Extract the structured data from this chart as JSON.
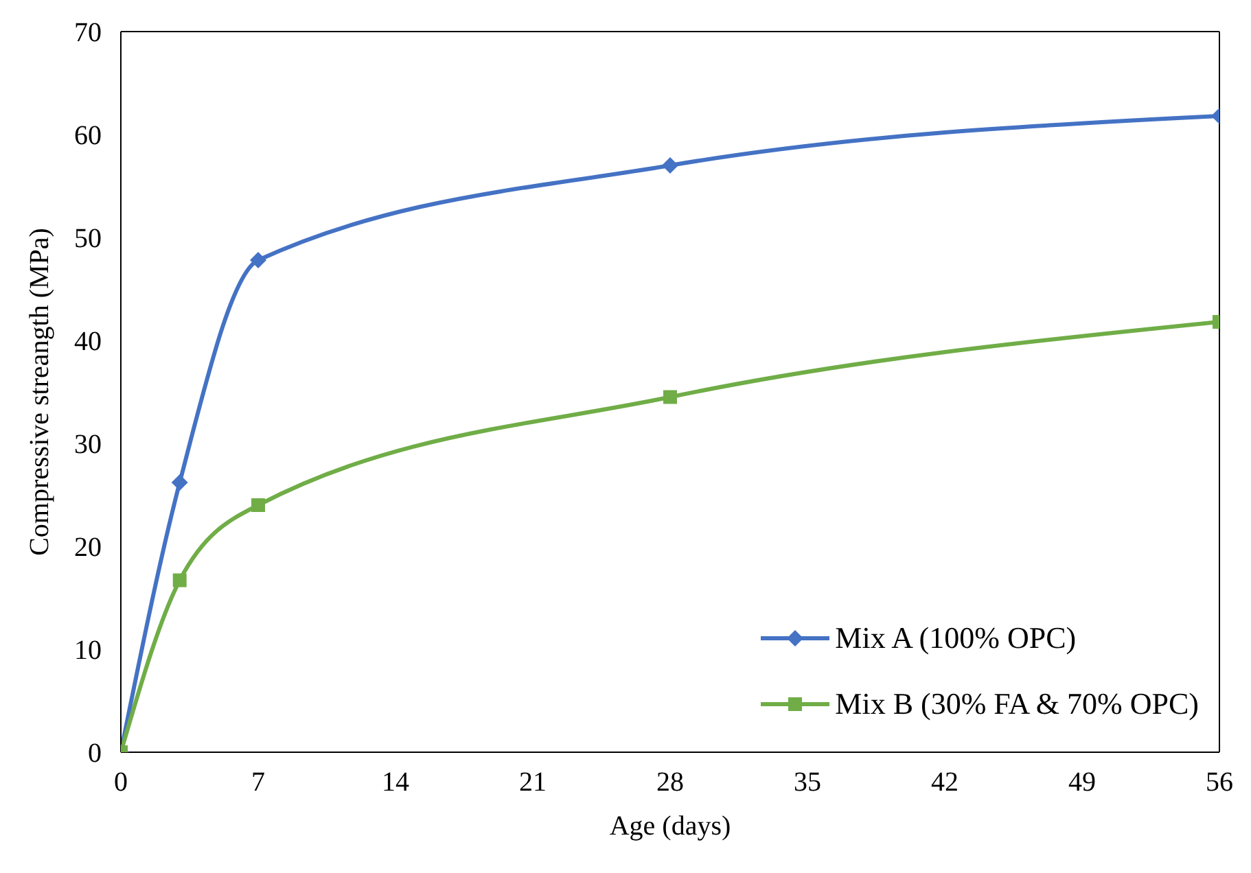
{
  "chart_data": {
    "type": "line",
    "xlabel": "Age (days)",
    "ylabel": "Compressive streangth (MPa)",
    "xlim": [
      0,
      56
    ],
    "xticks": [
      0,
      7,
      14,
      21,
      28,
      35,
      42,
      49,
      56
    ],
    "ylim": [
      0,
      70
    ],
    "yticks": [
      0,
      10,
      20,
      30,
      40,
      50,
      60,
      70
    ],
    "grid": false,
    "legend": "bottom right",
    "series": [
      {
        "name": "Mix A (100% OPC)",
        "color": "#4472c4",
        "marker": "diamond",
        "x": [
          0,
          3,
          7,
          28,
          56
        ],
        "values": [
          0,
          26.2,
          47.8,
          57,
          61.8
        ]
      },
      {
        "name": "Mix B (30% FA & 70% OPC)",
        "color": "#70ad47",
        "marker": "square",
        "x": [
          0,
          3,
          7,
          28,
          56
        ],
        "values": [
          0,
          16.7,
          24,
          34.5,
          41.8
        ]
      }
    ]
  }
}
